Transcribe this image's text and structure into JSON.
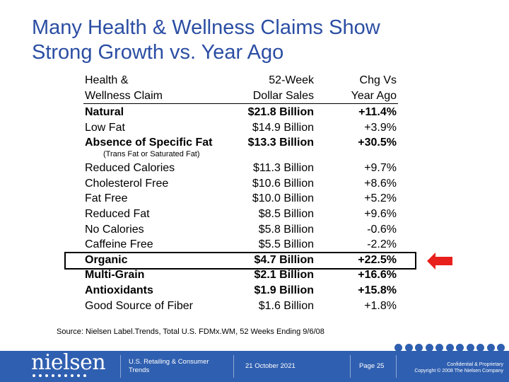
{
  "title": {
    "line1": "Many Health & Wellness Claims Show",
    "line2": "Strong Growth vs. Year Ago"
  },
  "table": {
    "headers": {
      "claim": [
        "Health &",
        "Wellness Claim"
      ],
      "sales": [
        "52-Week",
        "Dollar Sales"
      ],
      "chg": [
        "Chg Vs",
        "Year Ago"
      ]
    },
    "rows": [
      {
        "claim": "Natural",
        "sales": "$21.8 Billion",
        "chg": "+11.4%",
        "bold": true
      },
      {
        "claim": "Low Fat",
        "sales": "$14.9 Billion",
        "chg": "+3.9%",
        "bold": false
      },
      {
        "claim": "Absence of Specific Fat",
        "sales": "$13.3 Billion",
        "chg": "+30.5%",
        "bold": true
      },
      {
        "claim": "Reduced Calories",
        "sales": "$11.3 Billion",
        "chg": "+9.7%",
        "bold": false
      },
      {
        "claim": "Cholesterol Free",
        "sales": "$10.6 Billion",
        "chg": "+8.6%",
        "bold": false
      },
      {
        "claim": "Fat Free",
        "sales": "$10.0 Billion",
        "chg": "+5.2%",
        "bold": false
      },
      {
        "claim": "Reduced Fat",
        "sales": "$8.5 Billion",
        "chg": "+9.6%",
        "bold": false
      },
      {
        "claim": "No Calories",
        "sales": "$5.8 Billion",
        "chg": "-0.6%",
        "bold": false
      },
      {
        "claim": "Caffeine Free",
        "sales": "$5.5 Billion",
        "chg": "-2.2%",
        "bold": false
      },
      {
        "claim": "Organic",
        "sales": "$4.7 Billion",
        "chg": "+22.5%",
        "bold": true
      },
      {
        "claim": "Multi-Grain",
        "sales": "$2.1 Billion",
        "chg": "+16.6%",
        "bold": true
      },
      {
        "claim": "Antioxidants",
        "sales": "$1.9 Billion",
        "chg": "+15.8%",
        "bold": true
      },
      {
        "claim": "Good Source of Fiber",
        "sales": "$1.6 Billion",
        "chg": "+1.8%",
        "bold": false
      }
    ],
    "note": "(Trans Fat or Saturated Fat)"
  },
  "source": "Source: Nielsen Label.Trends, Total U.S. FDMx.WM, 52 Weeks Ending 9/6/08",
  "footer": {
    "logo": "nielsen",
    "dept": [
      "U.S. Retailing & Consumer",
      "Trends"
    ],
    "date": "21 October 2021",
    "page": "Page 25",
    "confidential": [
      "Confidential & Proprietary",
      "Copyright © 2008 The Nielsen Company"
    ]
  },
  "colors": {
    "title": "#2b4ea3",
    "footer": "#2f5fb0",
    "arrow": "#e8201c"
  }
}
